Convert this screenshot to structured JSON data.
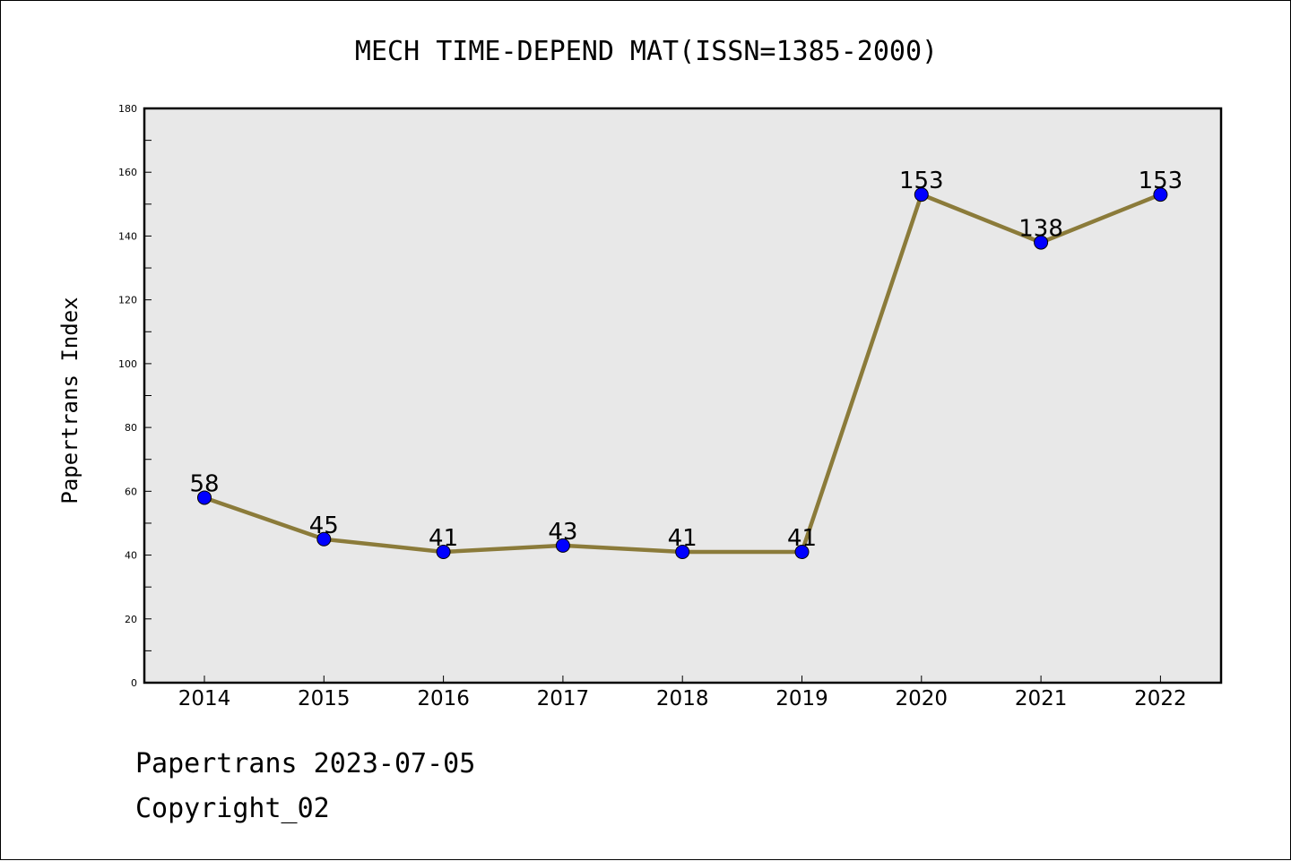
{
  "chart_data": {
    "type": "line",
    "title": "MECH TIME-DEPEND MAT(ISSN=1385-2000)",
    "ylabel": "Papertrans Index",
    "xlabel": "",
    "categories": [
      "2014",
      "2015",
      "2016",
      "2017",
      "2018",
      "2019",
      "2020",
      "2021",
      "2022"
    ],
    "series": [
      {
        "values": [
          58,
          45,
          41,
          43,
          41,
          41,
          153,
          138,
          153
        ]
      }
    ],
    "data_labels": [
      "58",
      "45",
      "41",
      "43",
      "41",
      "41",
      "153",
      "138",
      "153"
    ],
    "ylim": [
      0,
      180
    ],
    "yticks": [
      0,
      20,
      40,
      60,
      80,
      100,
      120,
      140,
      160,
      180
    ],
    "grid": false,
    "legend": "none",
    "colors": {
      "line": "#8b7b3a",
      "marker": "#0000ff",
      "plot_background": "#e8e8e8"
    }
  },
  "footer": {
    "line1": "Papertrans 2023-07-05",
    "line2": "Copyright_02"
  }
}
